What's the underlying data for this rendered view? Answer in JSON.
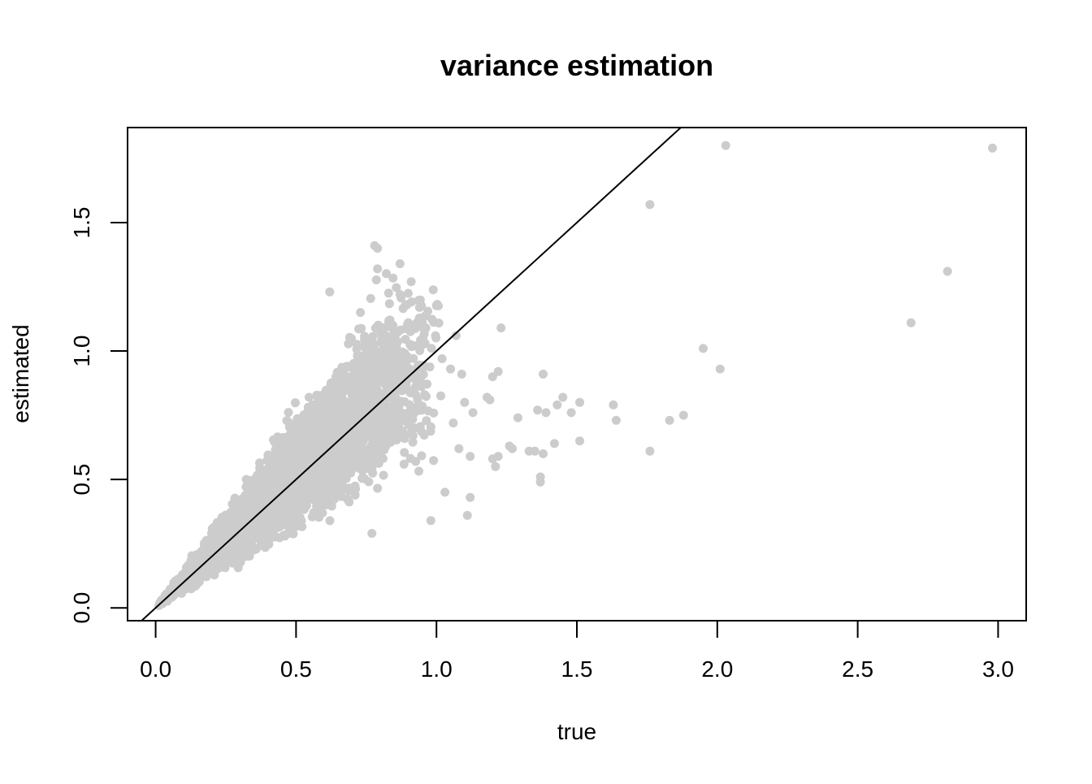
{
  "chart_data": {
    "type": "scatter",
    "title": "variance estimation",
    "xlabel": "true",
    "ylabel": "estimated",
    "xlim": [
      -0.1,
      3.1
    ],
    "ylim": [
      -0.05,
      1.87
    ],
    "x_ticks": [
      0.0,
      0.5,
      1.0,
      1.5,
      2.0,
      2.5,
      3.0
    ],
    "x_tick_labels": [
      "0.0",
      "0.5",
      "1.0",
      "1.5",
      "2.0",
      "2.5",
      "3.0"
    ],
    "y_ticks": [
      0.0,
      0.5,
      1.0,
      1.5
    ],
    "y_tick_labels": [
      "0.0",
      "0.5",
      "1.0",
      "1.5"
    ],
    "grid": false,
    "point_color": "#cccccc",
    "line_color": "#000000",
    "reference_line": {
      "intercept": 0,
      "slope": 1
    },
    "dense_cloud": {
      "description_x_range": [
        0.01,
        1.05
      ],
      "n_points": 2600,
      "upper_slope_max": 1.75,
      "lower_slope_min": 0.35
    },
    "outliers": [
      {
        "x": 2.03,
        "y": 1.8
      },
      {
        "x": 2.98,
        "y": 1.79
      },
      {
        "x": 1.76,
        "y": 1.57
      },
      {
        "x": 2.82,
        "y": 1.31
      },
      {
        "x": 2.69,
        "y": 1.11
      },
      {
        "x": 1.95,
        "y": 1.01
      },
      {
        "x": 2.01,
        "y": 0.93
      },
      {
        "x": 1.23,
        "y": 1.09
      },
      {
        "x": 1.38,
        "y": 0.91
      },
      {
        "x": 1.22,
        "y": 0.92
      },
      {
        "x": 1.07,
        "y": 1.06
      },
      {
        "x": 1.63,
        "y": 0.79
      },
      {
        "x": 1.64,
        "y": 0.73
      },
      {
        "x": 1.83,
        "y": 0.73
      },
      {
        "x": 1.88,
        "y": 0.75
      },
      {
        "x": 1.76,
        "y": 0.61
      },
      {
        "x": 1.51,
        "y": 0.8
      },
      {
        "x": 1.48,
        "y": 0.76
      },
      {
        "x": 1.45,
        "y": 0.82
      },
      {
        "x": 1.43,
        "y": 0.79
      },
      {
        "x": 1.36,
        "y": 0.77
      },
      {
        "x": 1.39,
        "y": 0.76
      },
      {
        "x": 1.29,
        "y": 0.74
      },
      {
        "x": 1.51,
        "y": 0.65
      },
      {
        "x": 1.42,
        "y": 0.64
      },
      {
        "x": 1.35,
        "y": 0.61
      },
      {
        "x": 1.33,
        "y": 0.61
      },
      {
        "x": 1.38,
        "y": 0.6
      },
      {
        "x": 1.37,
        "y": 0.51
      },
      {
        "x": 1.37,
        "y": 0.49
      },
      {
        "x": 1.26,
        "y": 0.63
      },
      {
        "x": 1.27,
        "y": 0.62
      },
      {
        "x": 1.22,
        "y": 0.59
      },
      {
        "x": 1.2,
        "y": 0.58
      },
      {
        "x": 1.21,
        "y": 0.55
      },
      {
        "x": 1.2,
        "y": 0.9
      },
      {
        "x": 1.19,
        "y": 0.81
      },
      {
        "x": 1.18,
        "y": 0.82
      },
      {
        "x": 1.13,
        "y": 0.76
      },
      {
        "x": 1.12,
        "y": 0.59
      },
      {
        "x": 1.12,
        "y": 0.43
      },
      {
        "x": 1.11,
        "y": 0.36
      },
      {
        "x": 1.09,
        "y": 0.91
      },
      {
        "x": 1.1,
        "y": 0.8
      },
      {
        "x": 1.08,
        "y": 0.62
      },
      {
        "x": 1.06,
        "y": 0.72
      },
      {
        "x": 1.05,
        "y": 0.93
      },
      {
        "x": 1.03,
        "y": 0.45
      },
      {
        "x": 1.02,
        "y": 0.97
      },
      {
        "x": 0.98,
        "y": 0.34
      },
      {
        "x": 0.77,
        "y": 0.29
      },
      {
        "x": 0.79,
        "y": 1.4
      },
      {
        "x": 0.78,
        "y": 1.41
      },
      {
        "x": 0.87,
        "y": 1.34
      },
      {
        "x": 0.79,
        "y": 1.32
      },
      {
        "x": 0.91,
        "y": 1.27
      },
      {
        "x": 0.62,
        "y": 1.23
      },
      {
        "x": 0.87,
        "y": 1.22
      },
      {
        "x": 0.93,
        "y": 1.11
      },
      {
        "x": 0.95,
        "y": 1.11
      }
    ]
  }
}
